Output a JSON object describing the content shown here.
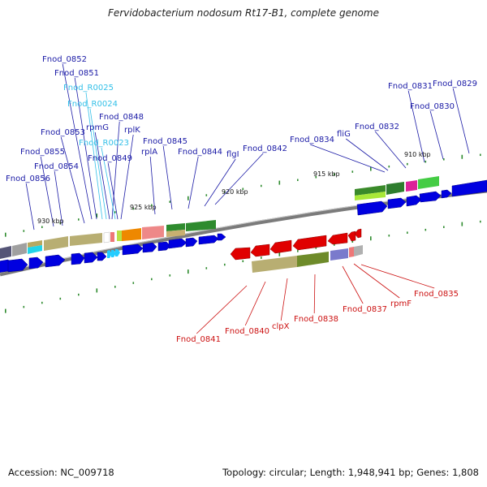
{
  "title": "Fervidobacterium nodosum Rt17-B1, complete genome",
  "footer": {
    "accession": "Accession: NC_009718",
    "summary": "Topology: circular; Length: 1,948,941 bp; Genes: 1,808"
  },
  "colors": {
    "label_forward": "#1a1aa6",
    "label_rna": "#33c0e8",
    "label_reverse": "#cc1111",
    "cds_forward": "#0000e0",
    "cds_reverse": "#e00000",
    "backbone": "#777777",
    "tick": "#2e8b2e"
  },
  "scale_labels": [
    "930 kbp",
    "925 kbp",
    "920 kbp",
    "915 kbp",
    "910 kbp"
  ],
  "forward_labels": [
    {
      "text": "Fnod_0852",
      "kind": "gene"
    },
    {
      "text": "Fnod_0851",
      "kind": "gene"
    },
    {
      "text": "Fnod_R0025",
      "kind": "rna"
    },
    {
      "text": "Fnod_R0024",
      "kind": "rna"
    },
    {
      "text": "Fnod_0848",
      "kind": "gene"
    },
    {
      "text": "rpmG",
      "kind": "gene"
    },
    {
      "text": "rplK",
      "kind": "gene"
    },
    {
      "text": "Fnod_R0023",
      "kind": "rna"
    },
    {
      "text": "Fnod_0853",
      "kind": "gene"
    },
    {
      "text": "Fnod_0849",
      "kind": "gene"
    },
    {
      "text": "Fnod_0855",
      "kind": "gene"
    },
    {
      "text": "rplA",
      "kind": "gene"
    },
    {
      "text": "Fnod_0845",
      "kind": "gene"
    },
    {
      "text": "Fnod_0854",
      "kind": "gene"
    },
    {
      "text": "Fnod_0844",
      "kind": "gene"
    },
    {
      "text": "flgI",
      "kind": "gene"
    },
    {
      "text": "Fnod_0842",
      "kind": "gene"
    },
    {
      "text": "Fnod_0856",
      "kind": "gene"
    },
    {
      "text": "Fnod_0834",
      "kind": "gene"
    },
    {
      "text": "fliG",
      "kind": "gene"
    },
    {
      "text": "Fnod_0832",
      "kind": "gene"
    },
    {
      "text": "Fnod_0831",
      "kind": "gene"
    },
    {
      "text": "Fnod_0829",
      "kind": "gene"
    },
    {
      "text": "Fnod_0830",
      "kind": "gene"
    }
  ],
  "reverse_labels": [
    {
      "text": "Fnod_0841",
      "kind": "gene"
    },
    {
      "text": "Fnod_0840",
      "kind": "gene"
    },
    {
      "text": "clpX",
      "kind": "gene"
    },
    {
      "text": "Fnod_0838",
      "kind": "gene"
    },
    {
      "text": "Fnod_0837",
      "kind": "gene"
    },
    {
      "text": "rpmF",
      "kind": "gene"
    },
    {
      "text": "Fnod_0835",
      "kind": "gene"
    }
  ]
}
